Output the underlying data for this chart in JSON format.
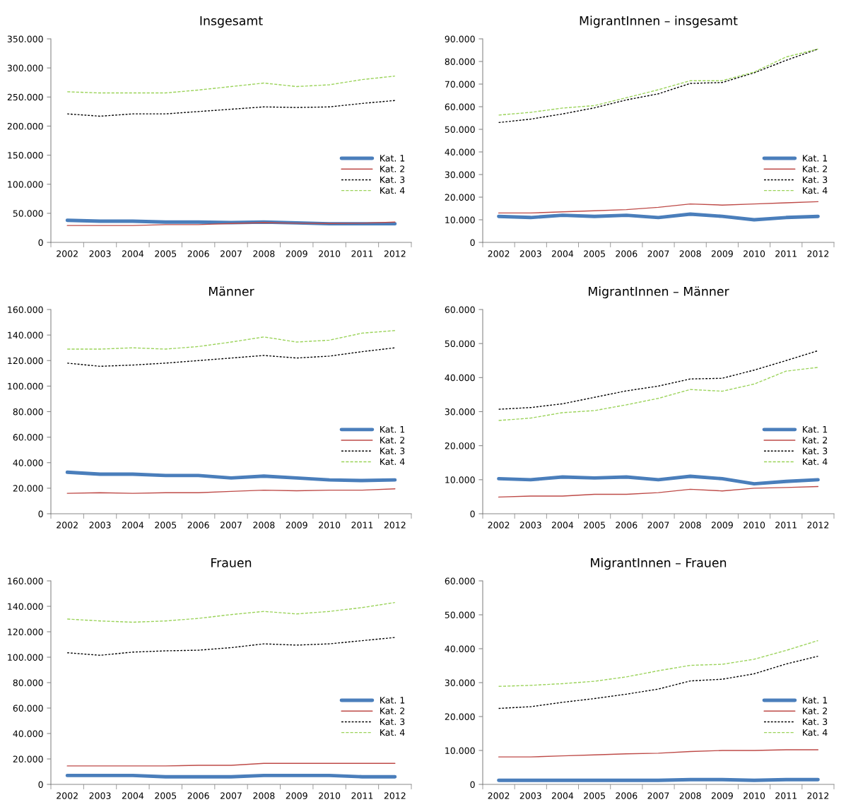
{
  "chart_data": [
    {
      "type": "line",
      "title": "Insgesamt",
      "categories": [
        "2002",
        "2003",
        "2004",
        "2005",
        "2006",
        "2007",
        "2008",
        "2009",
        "2010",
        "2011",
        "2012"
      ],
      "ylim": [
        0,
        350000
      ],
      "yticks": [
        0,
        {
          "value": 50000,
          "label": "50.000"
        },
        {
          "value": 100000,
          "label": "100.000"
        },
        {
          "value": 150000,
          "label": "150.000"
        },
        {
          "value": 200000,
          "label": "200.000"
        },
        {
          "value": 250000,
          "label": "250.000"
        },
        {
          "value": 300000,
          "label": "300.000"
        },
        {
          "value": 350000,
          "label": "350.000"
        }
      ],
      "legend": "right",
      "series": [
        {
          "name": "Kat. 1",
          "color": "#4a7ebb",
          "line_style": "solid",
          "values": [
            38000,
            36500,
            36500,
            35000,
            35000,
            34000,
            35000,
            33500,
            32000,
            32000,
            32000
          ]
        },
        {
          "name": "Kat. 2",
          "color": "#be4b48",
          "line_style": "solid",
          "values": [
            29000,
            29000,
            29000,
            30500,
            30500,
            32500,
            34000,
            33000,
            32500,
            33000,
            35000
          ]
        },
        {
          "name": "Kat. 3",
          "color": "#000000",
          "line_style": "dotted",
          "values": [
            221000,
            217000,
            221000,
            221000,
            225000,
            229000,
            233000,
            232000,
            233000,
            239000,
            244000
          ]
        },
        {
          "name": "Kat. 4",
          "color": "#9bd35a",
          "line_style": "dashed",
          "values": [
            259000,
            257000,
            257000,
            257000,
            262000,
            268000,
            274000,
            268000,
            271000,
            280000,
            286000
          ]
        }
      ]
    },
    {
      "type": "line",
      "title": "MigrantInnen – insgesamt",
      "categories": [
        "2002",
        "2003",
        "2004",
        "2005",
        "2006",
        "2007",
        "2008",
        "2009",
        "2010",
        "2011",
        "2012"
      ],
      "ylim": [
        0,
        90000
      ],
      "yticks": [
        0,
        {
          "value": 10000,
          "label": "10.000"
        },
        {
          "value": 20000,
          "label": "20.000"
        },
        {
          "value": 30000,
          "label": "30.000"
        },
        {
          "value": 40000,
          "label": "40.000"
        },
        {
          "value": 50000,
          "label": "50.000"
        },
        {
          "value": 60000,
          "label": "60.000"
        },
        {
          "value": 70000,
          "label": "70.000"
        },
        {
          "value": 80000,
          "label": "80.000"
        },
        {
          "value": 90000,
          "label": "90.000"
        }
      ],
      "legend": "right",
      "series": [
        {
          "name": "Kat. 1",
          "color": "#4a7ebb",
          "line_style": "solid",
          "values": [
            11500,
            11000,
            12000,
            11500,
            12000,
            11000,
            12500,
            11500,
            10000,
            11000,
            11500
          ]
        },
        {
          "name": "Kat. 2",
          "color": "#be4b48",
          "line_style": "solid",
          "values": [
            13000,
            13000,
            13500,
            14000,
            14500,
            15500,
            17000,
            16500,
            17000,
            17500,
            18000
          ]
        },
        {
          "name": "Kat. 3",
          "color": "#000000",
          "line_style": "dotted",
          "values": [
            53000,
            54500,
            56800,
            59500,
            63000,
            65700,
            70300,
            70700,
            75000,
            80500,
            85500
          ]
        },
        {
          "name": "Kat. 4",
          "color": "#9bd35a",
          "line_style": "dashed",
          "values": [
            56300,
            57500,
            59400,
            60500,
            64000,
            67500,
            71500,
            71500,
            75300,
            82000,
            85500
          ]
        }
      ]
    },
    {
      "type": "line",
      "title": "Männer",
      "categories": [
        "2002",
        "2003",
        "2004",
        "2005",
        "2006",
        "2007",
        "2008",
        "2009",
        "2010",
        "2011",
        "2012"
      ],
      "ylim": [
        0,
        160000
      ],
      "yticks": [
        0,
        {
          "value": 20000,
          "label": "20.000"
        },
        {
          "value": 40000,
          "label": "40.000"
        },
        {
          "value": 60000,
          "label": "60.000"
        },
        {
          "value": 80000,
          "label": "80.000"
        },
        {
          "value": 100000,
          "label": "100.000"
        },
        {
          "value": 120000,
          "label": "120.000"
        },
        {
          "value": 140000,
          "label": "140.000"
        },
        {
          "value": 160000,
          "label": "160.000"
        }
      ],
      "legend": "right",
      "series": [
        {
          "name": "Kat. 1",
          "color": "#4a7ebb",
          "line_style": "solid",
          "values": [
            32500,
            31000,
            31000,
            30000,
            30000,
            28000,
            29500,
            28000,
            26500,
            26000,
            26500
          ]
        },
        {
          "name": "Kat. 2",
          "color": "#be4b48",
          "line_style": "solid",
          "values": [
            16000,
            16500,
            16000,
            16500,
            16500,
            17500,
            18500,
            18000,
            18500,
            18500,
            19500
          ]
        },
        {
          "name": "Kat. 3",
          "color": "#000000",
          "line_style": "dotted",
          "values": [
            118000,
            115500,
            116500,
            118000,
            120000,
            122000,
            124000,
            122000,
            123500,
            127000,
            130000
          ]
        },
        {
          "name": "Kat. 4",
          "color": "#9bd35a",
          "line_style": "dashed",
          "values": [
            129000,
            129000,
            130000,
            129000,
            131000,
            134500,
            138500,
            134500,
            136000,
            141500,
            143500
          ]
        }
      ]
    },
    {
      "type": "line",
      "title": "MigrantInnen – Männer",
      "categories": [
        "2002",
        "2003",
        "2004",
        "2005",
        "2006",
        "2007",
        "2008",
        "2009",
        "2010",
        "2011",
        "2012"
      ],
      "ylim": [
        0,
        60000
      ],
      "yticks": [
        0,
        {
          "value": 10000,
          "label": "10.000"
        },
        {
          "value": 20000,
          "label": "20.000"
        },
        {
          "value": 30000,
          "label": "30.000"
        },
        {
          "value": 40000,
          "label": "40.000"
        },
        {
          "value": 50000,
          "label": "50.000"
        },
        {
          "value": 60000,
          "label": "60.000"
        }
      ],
      "legend": "right",
      "series": [
        {
          "name": "Kat. 1",
          "color": "#4a7ebb",
          "line_style": "solid",
          "values": [
            10300,
            10000,
            10800,
            10500,
            10800,
            10000,
            11000,
            10300,
            8800,
            9500,
            10000
          ]
        },
        {
          "name": "Kat. 2",
          "color": "#be4b48",
          "line_style": "solid",
          "values": [
            4900,
            5200,
            5200,
            5700,
            5700,
            6200,
            7200,
            6700,
            7500,
            7700,
            8000
          ]
        },
        {
          "name": "Kat. 3",
          "color": "#000000",
          "line_style": "dotted",
          "values": [
            30700,
            31200,
            32300,
            34200,
            36100,
            37500,
            39600,
            39800,
            42200,
            45000,
            47900
          ]
        },
        {
          "name": "Kat. 4",
          "color": "#9bd35a",
          "line_style": "dashed",
          "values": [
            27400,
            28100,
            29700,
            30300,
            32000,
            33900,
            36500,
            36000,
            38100,
            41900,
            43000
          ]
        }
      ]
    },
    {
      "type": "line",
      "title": "Frauen",
      "categories": [
        "2002",
        "2003",
        "2004",
        "2005",
        "2006",
        "2007",
        "2008",
        "2009",
        "2010",
        "2011",
        "2012"
      ],
      "ylim": [
        0,
        160000
      ],
      "yticks": [
        0,
        {
          "value": 20000,
          "label": "20.000"
        },
        {
          "value": 40000,
          "label": "40.000"
        },
        {
          "value": 60000,
          "label": "60.000"
        },
        {
          "value": 80000,
          "label": "80.000"
        },
        {
          "value": 100000,
          "label": "100.000"
        },
        {
          "value": 120000,
          "label": "120.000"
        },
        {
          "value": 140000,
          "label": "140.000"
        },
        {
          "value": 160000,
          "label": "160.000"
        }
      ],
      "legend": "right",
      "series": [
        {
          "name": "Kat. 1",
          "color": "#4a7ebb",
          "line_style": "solid",
          "values": [
            7000,
            7000,
            7000,
            6000,
            6000,
            6000,
            7000,
            7000,
            7000,
            6000,
            6000
          ]
        },
        {
          "name": "Kat. 2",
          "color": "#be4b48",
          "line_style": "solid",
          "values": [
            14500,
            14500,
            14500,
            14500,
            15000,
            15000,
            16500,
            16500,
            16500,
            16500,
            16500
          ]
        },
        {
          "name": "Kat. 3",
          "color": "#000000",
          "line_style": "dotted",
          "values": [
            103500,
            101500,
            104000,
            105000,
            105500,
            107500,
            110500,
            109500,
            110500,
            113000,
            115500
          ]
        },
        {
          "name": "Kat. 4",
          "color": "#9bd35a",
          "line_style": "dashed",
          "values": [
            130000,
            128500,
            127500,
            128500,
            130500,
            133500,
            136000,
            134000,
            136000,
            139000,
            143000
          ]
        }
      ]
    },
    {
      "type": "line",
      "title": "MigrantInnen – Frauen",
      "categories": [
        "2002",
        "2003",
        "2004",
        "2005",
        "2006",
        "2007",
        "2008",
        "2009",
        "2010",
        "2011",
        "2012"
      ],
      "ylim": [
        0,
        60000
      ],
      "yticks": [
        0,
        {
          "value": 10000,
          "label": "10.000"
        },
        {
          "value": 20000,
          "label": "20.000"
        },
        {
          "value": 30000,
          "label": "30.000"
        },
        {
          "value": 40000,
          "label": "40.000"
        },
        {
          "value": 50000,
          "label": "50.000"
        },
        {
          "value": 60000,
          "label": "60.000"
        }
      ],
      "legend": "right",
      "series": [
        {
          "name": "Kat. 1",
          "color": "#4a7ebb",
          "line_style": "solid",
          "values": [
            1200,
            1200,
            1200,
            1200,
            1200,
            1200,
            1400,
            1400,
            1200,
            1400,
            1400
          ]
        },
        {
          "name": "Kat. 2",
          "color": "#be4b48",
          "line_style": "solid",
          "values": [
            8100,
            8100,
            8400,
            8700,
            9000,
            9200,
            9700,
            10000,
            10000,
            10200,
            10200
          ]
        },
        {
          "name": "Kat. 3",
          "color": "#000000",
          "line_style": "dotted",
          "values": [
            22400,
            22900,
            24200,
            25300,
            26600,
            28100,
            30500,
            31000,
            32600,
            35500,
            37800
          ]
        },
        {
          "name": "Kat. 4",
          "color": "#9bd35a",
          "line_style": "dashed",
          "values": [
            28900,
            29200,
            29700,
            30400,
            31700,
            33500,
            35100,
            35400,
            36900,
            39500,
            42400
          ]
        }
      ]
    }
  ]
}
